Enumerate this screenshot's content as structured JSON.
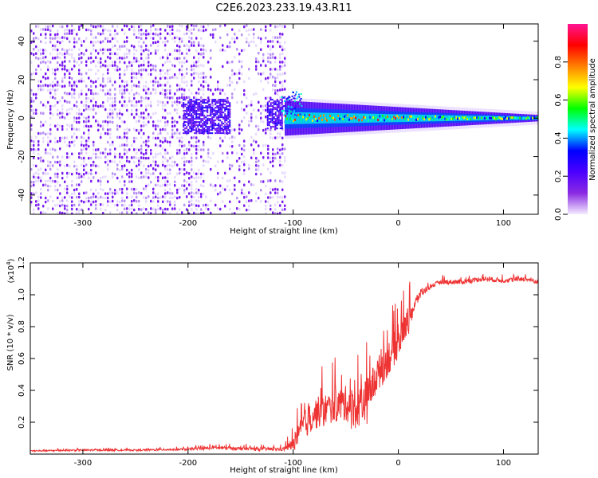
{
  "title": "C2E6.2023.233.19.43.R11",
  "chart_data": [
    {
      "type": "heatmap",
      "xlabel": "Height of straight line (km)",
      "ylabel": "Frequency (Hz)",
      "xlim": [
        -350,
        133
      ],
      "ylim": [
        -50,
        49
      ],
      "xticks": [
        -300,
        -200,
        -100,
        0,
        100
      ],
      "xtick_labels": [
        "-300",
        "-200",
        "-100",
        "0",
        "100"
      ],
      "yticks": [
        -40,
        -20,
        0,
        20,
        40
      ],
      "ytick_labels": [
        "-40",
        "-20",
        "0",
        "20",
        "40"
      ],
      "colorbar": {
        "label": "Normalized spectral amplitude",
        "range": [
          0,
          1
        ],
        "ticks": [
          0.0,
          0.2,
          0.4,
          0.6,
          0.8
        ],
        "tick_labels": [
          "0.0",
          "0.2",
          "0.4",
          "0.6",
          "0.8"
        ],
        "colormap": [
          "#f4ecff",
          "#8a2be2",
          "#4b00ff",
          "#0000ff",
          "#00ffff",
          "#00ff00",
          "#ffff00",
          "#ff8000",
          "#ff0000",
          "#ff1493"
        ]
      },
      "regions": [
        {
          "kind": "noise",
          "x_range": [
            -350,
            -108
          ],
          "f_range": [
            -50,
            49
          ],
          "amplitude": 0.05
        },
        {
          "kind": "blob",
          "x_range": [
            -205,
            -160
          ],
          "f_range": [
            -8,
            10
          ],
          "amplitude": 0.2
        },
        {
          "kind": "blob",
          "x_range": [
            -125,
            -110
          ],
          "f_range": [
            -5,
            10
          ],
          "amplitude": 0.2
        },
        {
          "kind": "signal",
          "x_range": [
            -108,
            133
          ],
          "f_center": 0,
          "amplitude_range": [
            0.3,
            0.9
          ]
        }
      ]
    },
    {
      "type": "line",
      "xlabel": "Height of straight line (km)",
      "ylabel": "SNR (10 * v/v)",
      "scale_label": "(x10",
      "scale_exponent": "4",
      "scale_close": ")",
      "xlim": [
        -350,
        133
      ],
      "ylim": [
        0,
        1.2
      ],
      "xticks": [
        -300,
        -200,
        -100,
        0,
        100
      ],
      "xtick_labels": [
        "-300",
        "-200",
        "-100",
        "0",
        "100"
      ],
      "yticks": [
        0.2,
        0.4,
        0.6,
        0.8,
        1.0,
        1.2
      ],
      "ytick_labels": [
        "0.2",
        "0.4",
        "0.6",
        "0.8",
        "1.0",
        "1.2"
      ],
      "series": [
        {
          "color": "#ee3333",
          "x": [
            -350,
            -300,
            -250,
            -200,
            -175,
            -150,
            -110,
            -100,
            -90,
            -80,
            -70,
            -60,
            -50,
            -40,
            -30,
            -20,
            -10,
            0,
            10,
            20,
            30,
            40,
            60,
            80,
            100,
            120,
            133
          ],
          "y": [
            0.02,
            0.025,
            0.025,
            0.03,
            0.04,
            0.035,
            0.03,
            0.06,
            0.18,
            0.25,
            0.28,
            0.3,
            0.32,
            0.28,
            0.35,
            0.5,
            0.6,
            0.7,
            0.85,
            1.0,
            1.05,
            1.08,
            1.08,
            1.1,
            1.09,
            1.1,
            1.08
          ],
          "noise": [
            0.01,
            0.01,
            0.01,
            0.012,
            0.02,
            0.02,
            0.02,
            0.08,
            0.18,
            0.2,
            0.2,
            0.2,
            0.22,
            0.25,
            0.25,
            0.22,
            0.22,
            0.2,
            0.15,
            0.06,
            0.03,
            0.03,
            0.03,
            0.03,
            0.03,
            0.03,
            0.03
          ]
        }
      ]
    }
  ]
}
